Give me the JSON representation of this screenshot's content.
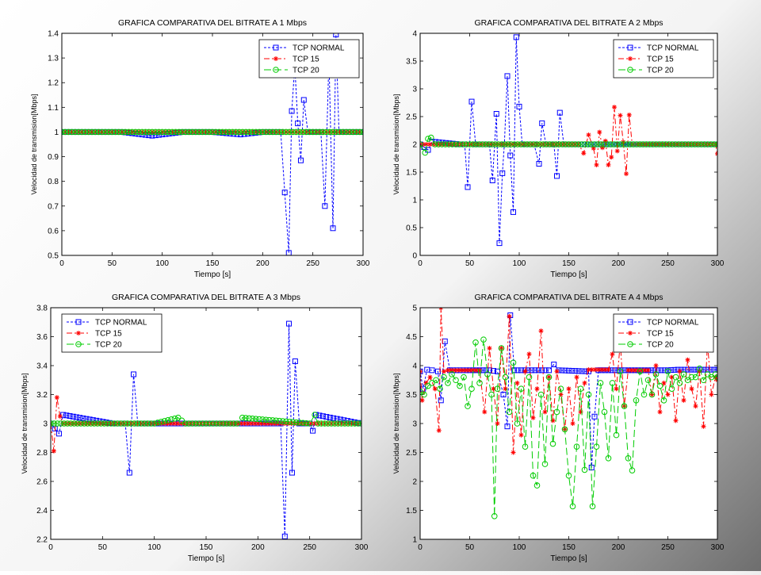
{
  "chart_data": [
    {
      "type": "line",
      "title": "GRAFICA COMPARATIVA DEL BITRATE A 1 Mbps",
      "xlabel": "Tiempo [s]",
      "ylabel": "Velocidad de transmision[Mbps]",
      "xlim": [
        0,
        300
      ],
      "ylim": [
        0.5,
        1.4
      ],
      "xticks": [
        0,
        50,
        100,
        150,
        200,
        250,
        300
      ],
      "yticks": [
        0.5,
        0.6,
        0.7,
        0.8,
        0.9,
        1,
        1.1,
        1.2,
        1.3,
        1.4
      ],
      "legend_position": "top-right",
      "grid": false,
      "series": [
        {
          "name": "TCP NORMAL",
          "color": "#0000ff",
          "marker": "square",
          "x": [
            0,
            30,
            60,
            90,
            120,
            150,
            178,
            200,
            218,
            226,
            229,
            232,
            235,
            238,
            241,
            245,
            258,
            262,
            266,
            270,
            273,
            276,
            290,
            300
          ],
          "y": [
            1,
            1,
            1,
            0.985,
            1,
            1,
            0.99,
            1,
            1,
            0.51,
            1.085,
            1.27,
            1.035,
            0.885,
            1.13,
            1,
            1,
            0.7,
            1.3,
            0.61,
            1.395,
            1,
            1,
            1
          ]
        },
        {
          "name": "TCP 15",
          "color": "#ff0000",
          "marker": "star",
          "x": [
            0,
            50,
            100,
            150,
            200,
            250,
            300
          ],
          "y": [
            1,
            1,
            1,
            1,
            1,
            1,
            1
          ]
        },
        {
          "name": "TCP 20",
          "color": "#00cc00",
          "marker": "circle",
          "x": [
            0,
            50,
            100,
            150,
            200,
            250,
            300
          ],
          "y": [
            1,
            1,
            1,
            1,
            1,
            1,
            1
          ]
        }
      ]
    },
    {
      "type": "line",
      "title": "GRAFICA COMPARATIVA DEL BITRATE A 2 Mbps",
      "xlabel": "Tiempo [s]",
      "ylabel": "Velocidad de transmision[Mbps]",
      "xlim": [
        0,
        300
      ],
      "ylim": [
        0,
        4
      ],
      "xticks": [
        0,
        50,
        100,
        150,
        200,
        250,
        300
      ],
      "yticks": [
        0,
        0.5,
        1,
        1.5,
        2,
        2.5,
        3,
        3.5,
        4
      ],
      "legend_position": "top-right",
      "grid": false,
      "series": [
        {
          "name": "TCP NORMAL",
          "color": "#0000ff",
          "marker": "square",
          "x": [
            0,
            8,
            12,
            40,
            45,
            48,
            52,
            56,
            70,
            73,
            77,
            80,
            83,
            85,
            88,
            91,
            94,
            97,
            100,
            103,
            115,
            120,
            123,
            127,
            135,
            138,
            141,
            145,
            200,
            300
          ],
          "y": [
            2,
            1.9,
            2.05,
            2,
            2,
            1.23,
            2.77,
            2,
            2,
            1.35,
            2.55,
            0.22,
            1.48,
            2,
            3.23,
            1.8,
            0.78,
            3.93,
            2.68,
            2,
            2,
            1.65,
            2.38,
            2,
            2,
            1.43,
            2.57,
            2,
            2,
            2
          ]
        },
        {
          "name": "TCP 15",
          "color": "#ff0000",
          "marker": "star",
          "x": [
            0,
            160,
            165,
            170,
            175,
            178,
            181,
            184,
            187,
            190,
            193,
            196,
            199,
            202,
            205,
            208,
            211,
            214,
            220,
            298,
            300
          ],
          "y": [
            2,
            2,
            1.84,
            2.17,
            1.93,
            1.63,
            2.22,
            1.94,
            2.06,
            1.63,
            1.77,
            2.67,
            1.88,
            2.52,
            2.04,
            1.47,
            2.53,
            2,
            2,
            2,
            1.83
          ]
        },
        {
          "name": "TCP 20",
          "color": "#00cc00",
          "marker": "circle",
          "x": [
            0,
            5,
            8,
            11,
            15,
            50,
            150,
            300
          ],
          "y": [
            2,
            1.85,
            2.1,
            2.12,
            2,
            2,
            2,
            2
          ]
        }
      ]
    },
    {
      "type": "line",
      "title": "GRAFICA COMPARATIVA DEL BITRATE A 3 Mbps",
      "xlabel": "Tiempo [s]",
      "ylabel": "Velocidad de transmision[Mbps]",
      "xlim": [
        0,
        300
      ],
      "ylim": [
        2.2,
        3.8
      ],
      "xticks": [
        0,
        50,
        100,
        150,
        200,
        250,
        300
      ],
      "yticks": [
        2.2,
        2.4,
        2.6,
        2.8,
        3,
        3.2,
        3.4,
        3.6,
        3.8
      ],
      "legend_position": "top-left",
      "grid": false,
      "series": [
        {
          "name": "TCP NORMAL",
          "color": "#0000ff",
          "marker": "square",
          "x": [
            0,
            8,
            12,
            60,
            72,
            76,
            80,
            84,
            150,
            222,
            226,
            230,
            233,
            236,
            240,
            250,
            253,
            256,
            300
          ],
          "y": [
            3,
            2.93,
            3.06,
            3,
            3,
            2.66,
            3.34,
            3,
            3,
            3,
            2.22,
            3.69,
            2.66,
            3.43,
            3,
            3,
            2.95,
            3.06,
            3
          ]
        },
        {
          "name": "TCP 15",
          "color": "#ff0000",
          "marker": "star",
          "x": [
            0,
            3,
            6,
            9,
            12,
            100,
            200,
            300
          ],
          "y": [
            3,
            2.81,
            3.18,
            3.05,
            3,
            3,
            3,
            3
          ]
        },
        {
          "name": "TCP 20",
          "color": "#00cc00",
          "marker": "circle",
          "x": [
            0,
            100,
            123,
            130,
            180,
            185,
            250,
            255,
            258,
            300
          ],
          "y": [
            3,
            3,
            3.04,
            3,
            3,
            3.04,
            3,
            3.06,
            3,
            3
          ]
        }
      ]
    },
    {
      "type": "line",
      "title": "GRAFICA COMPARATIVA DEL BITRATE A 4 Mbps",
      "xlabel": "Tiempo [s]",
      "ylabel": "Velocidad de transmision[Mbps]",
      "xlim": [
        0,
        300
      ],
      "ylim": [
        1,
        5
      ],
      "xticks": [
        0,
        50,
        100,
        150,
        200,
        250,
        300
      ],
      "yticks": [
        1,
        1.5,
        2,
        2.5,
        3,
        3.5,
        4,
        4.5,
        5
      ],
      "legend_position": "top-right",
      "grid": false,
      "series": [
        {
          "name": "TCP NORMAL",
          "color": "#0000ff",
          "marker": "square",
          "x": [
            0,
            3,
            7,
            12,
            18,
            21,
            25,
            30,
            70,
            78,
            84,
            88,
            91,
            95,
            130,
            135,
            140,
            170,
            173,
            176,
            180,
            250,
            260,
            300
          ],
          "y": [
            3.9,
            3.6,
            3.93,
            3.92,
            3.9,
            3.4,
            4.42,
            3.92,
            3.92,
            3.9,
            3.5,
            2.95,
            4.87,
            3.92,
            3.92,
            4.02,
            3.92,
            3.9,
            2.24,
            3.12,
            3.92,
            3.92,
            3.93,
            3.93
          ]
        },
        {
          "name": "TCP 15",
          "color": "#ff0000",
          "marker": "star",
          "x": [
            0,
            2,
            6,
            10,
            15,
            19,
            21,
            24,
            28,
            60,
            65,
            70,
            74,
            78,
            82,
            86,
            90,
            94,
            98,
            102,
            106,
            110,
            114,
            118,
            122,
            126,
            130,
            134,
            138,
            142,
            146,
            150,
            154,
            158,
            162,
            166,
            170,
            190,
            194,
            198,
            202,
            206,
            210,
            230,
            234,
            238,
            242,
            246,
            250,
            254,
            258,
            262,
            266,
            270,
            274,
            278,
            282,
            286,
            290,
            294,
            298,
            300
          ],
          "y": [
            3.9,
            3.4,
            3.7,
            3.8,
            3.6,
            2.88,
            5.0,
            3.9,
            3.92,
            3.92,
            3.2,
            4.3,
            3.6,
            3.0,
            4.3,
            3.6,
            4.85,
            2.5,
            3.7,
            2.8,
            3.9,
            4.2,
            3.1,
            3.6,
            4.6,
            3.2,
            3.8,
            3.05,
            3.9,
            3.5,
            2.9,
            3.6,
            3.0,
            3.8,
            3.2,
            3.7,
            3.93,
            3.93,
            4.2,
            3.6,
            4.4,
            3.3,
            3.92,
            3.92,
            3.5,
            4.0,
            3.2,
            3.7,
            3.5,
            3.8,
            3.05,
            3.9,
            3.4,
            4.1,
            3.6,
            3.3,
            3.9,
            2.95,
            4.4,
            3.5,
            3.8,
            3.75
          ]
        },
        {
          "name": "TCP 20",
          "color": "#00cc00",
          "marker": "circle",
          "x": [
            0,
            4,
            8,
            12,
            16,
            20,
            24,
            28,
            32,
            36,
            40,
            44,
            48,
            52,
            56,
            60,
            64,
            68,
            72,
            75,
            78,
            82,
            86,
            90,
            94,
            98,
            102,
            106,
            110,
            114,
            118,
            122,
            126,
            130,
            134,
            138,
            142,
            146,
            150,
            154,
            158,
            162,
            166,
            170,
            174,
            178,
            182,
            186,
            190,
            194,
            198,
            202,
            206,
            210,
            214,
            218,
            222,
            226,
            230,
            234,
            238,
            242,
            246,
            250,
            254,
            258,
            262,
            266,
            270,
            274,
            278,
            282,
            286,
            290,
            294,
            298,
            300
          ],
          "y": [
            3.55,
            3.5,
            3.65,
            3.7,
            3.75,
            3.6,
            3.8,
            3.7,
            3.85,
            3.75,
            3.65,
            3.8,
            3.3,
            3.6,
            4.4,
            3.7,
            4.45,
            3.85,
            3.5,
            1.4,
            3.6,
            4.3,
            3.8,
            3.2,
            4.05,
            3.0,
            3.6,
            2.6,
            3.8,
            2.1,
            1.93,
            3.5,
            2.3,
            3.8,
            2.65,
            3.2,
            3.6,
            2.9,
            2.1,
            1.57,
            2.6,
            3.6,
            2.2,
            3.5,
            1.57,
            2.6,
            3.7,
            3.2,
            2.4,
            3.7,
            2.8,
            3.9,
            3.3,
            2.4,
            2.19,
            3.4,
            3.9,
            3.5,
            3.75,
            3.5,
            3.85,
            3.65,
            3.4,
            3.9,
            3.6,
            3.8,
            3.7,
            3.85,
            3.75,
            3.8,
            3.8,
            3.95,
            3.75,
            3.85,
            3.8,
            3.85,
            3.8
          ]
        }
      ]
    }
  ]
}
